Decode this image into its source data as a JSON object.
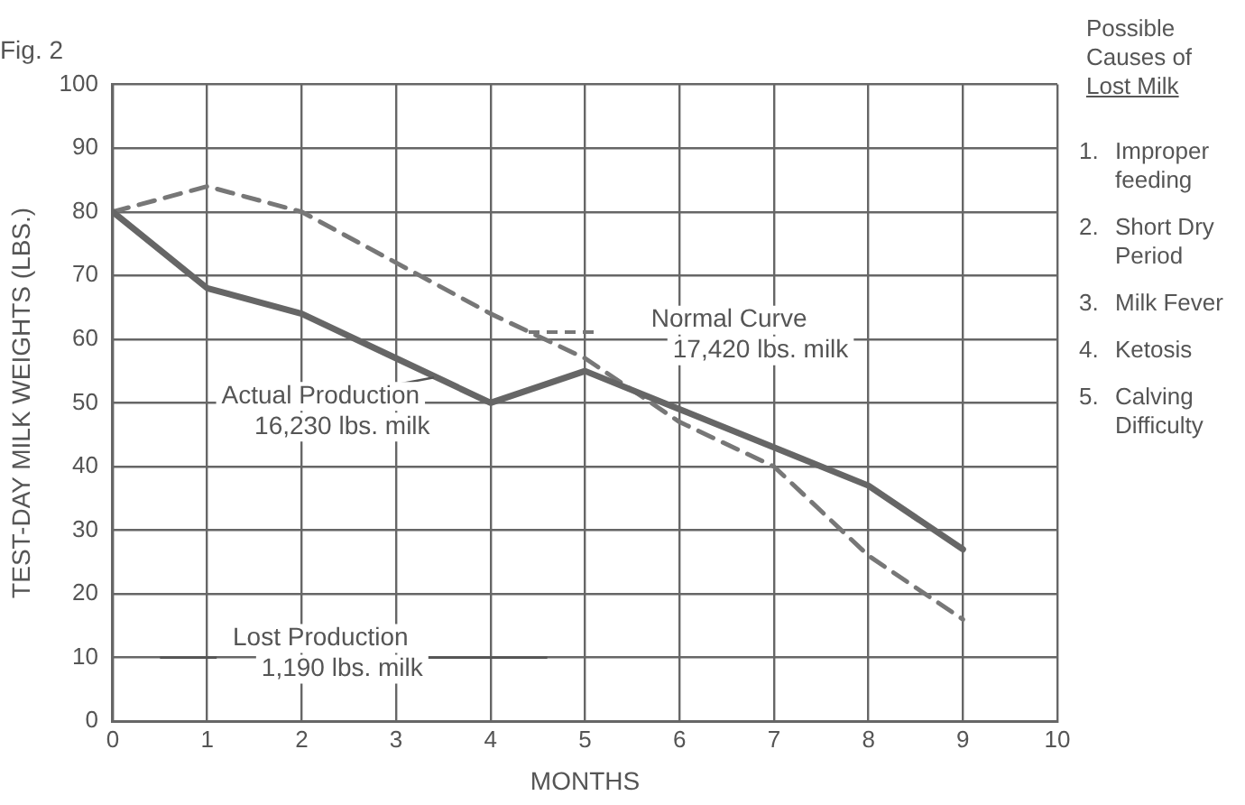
{
  "chart_data": {
    "type": "line",
    "title": "Fig. 2",
    "xlabel": "MONTHS",
    "ylabel": "TEST-DAY MILK WEIGHTS (LBS.)",
    "x": [
      0,
      1,
      2,
      3,
      4,
      5,
      6,
      7,
      8,
      9
    ],
    "series": [
      {
        "color": "#666666",
        "line_style": "solid",
        "values": [
          80,
          68,
          64,
          57,
          50,
          55,
          49,
          43,
          37,
          27
        ]
      },
      {
        "color": "#777777",
        "line_style": "dashed",
        "values": [
          80,
          84,
          80,
          72,
          64,
          57,
          47,
          40,
          26,
          16
        ]
      }
    ],
    "xlim": [
      0,
      10
    ],
    "xticks": [
      0,
      1,
      2,
      3,
      4,
      5,
      6,
      7,
      8,
      9,
      10
    ],
    "ylim": [
      0,
      100
    ],
    "yticks": [
      0,
      10,
      20,
      30,
      40,
      50,
      60,
      70,
      80,
      90,
      100
    ],
    "grid": true,
    "legend": false,
    "marker": "none",
    "annotations": [
      "Normal Curve\n17,420 lbs. milk",
      "Actual Production\n16,230 lbs. milk",
      "Lost Production\n1,190 lbs. milk",
      "Possible\nCauses of\nLost Milk",
      "1.\tImproper\nfeeding",
      "2.\tShort Dry\nPeriod",
      "3.\tMilk Fever",
      "4.\tKetosis",
      "5.\tCalving\nDifficulty"
    ]
  }
}
